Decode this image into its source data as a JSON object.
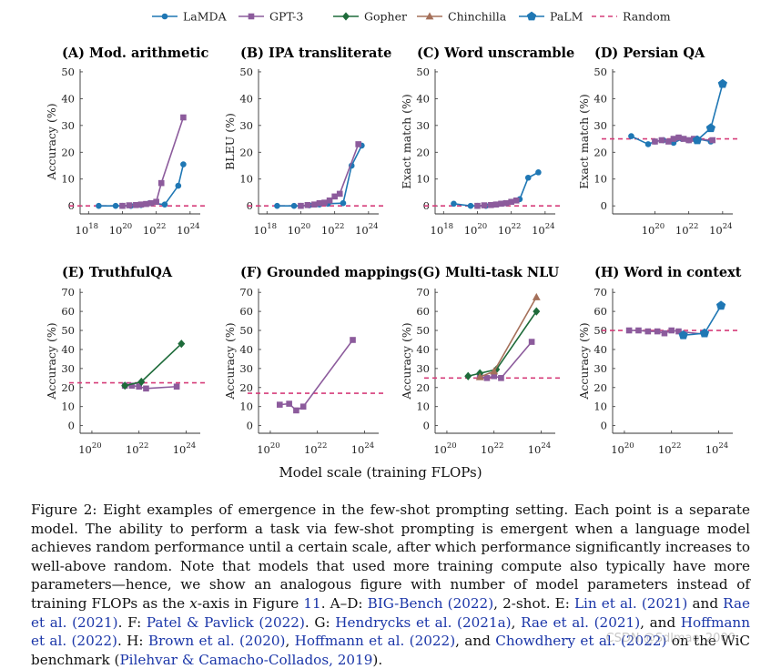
{
  "legend": [
    {
      "key": "LaMDA",
      "label": "LaMDA",
      "color": "#1f77b4",
      "marker": "circle"
    },
    {
      "key": "GPT3",
      "label": "GPT-3",
      "color": "#8c5b9c",
      "marker": "square"
    },
    {
      "key": "Gopher",
      "label": "Gopher",
      "color": "#1e6b3a",
      "marker": "diamond"
    },
    {
      "key": "Chinchilla",
      "label": "Chinchilla",
      "color": "#a5705a",
      "marker": "triangle"
    },
    {
      "key": "PaLM",
      "label": "PaLM",
      "color": "#1f77b4",
      "marker": "pentagon"
    },
    {
      "key": "Random",
      "label": "Random",
      "color": "#d63d7a",
      "marker": "dash"
    }
  ],
  "chart_data": [
    {
      "type": "line",
      "title": "(A) Mod. arithmetic",
      "ylabel": "Accuracy (%)",
      "xlim": [
        17.5,
        24.6
      ],
      "ylim": [
        -3,
        51
      ],
      "yticks": [
        0,
        10,
        20,
        30,
        40,
        50
      ],
      "xticks": [
        18,
        20,
        22,
        24
      ],
      "random": 0,
      "series": [
        {
          "name": "LaMDA",
          "x": [
            18.6,
            19.6,
            20.0,
            20.5,
            21.1,
            21.6,
            22.5,
            23.3,
            23.6
          ],
          "y": [
            0,
            0,
            0,
            0,
            0.3,
            1,
            0.5,
            7.5,
            15.5
          ]
        },
        {
          "name": "GPT-3",
          "x": [
            20.0,
            20.4,
            20.8,
            21.1,
            21.4,
            21.7,
            22.0,
            22.3,
            23.6
          ],
          "y": [
            0,
            0.2,
            0.3,
            0.5,
            0.7,
            1,
            1.5,
            8.5,
            33
          ]
        }
      ]
    },
    {
      "type": "line",
      "title": "(B) IPA transliterate",
      "ylabel": "BLEU (%)",
      "xlim": [
        17.5,
        24.6
      ],
      "ylim": [
        -3,
        51
      ],
      "yticks": [
        0,
        10,
        20,
        30,
        40,
        50
      ],
      "xticks": [
        18,
        20,
        22,
        24
      ],
      "random": 0,
      "series": [
        {
          "name": "LaMDA",
          "x": [
            18.6,
            19.6,
            20.0,
            20.5,
            21.1,
            21.6,
            22.5,
            23.0,
            23.6
          ],
          "y": [
            0,
            0,
            0,
            0.2,
            0.5,
            0.8,
            1,
            15,
            22.5
          ]
        },
        {
          "name": "GPT-3",
          "x": [
            20.0,
            20.4,
            20.8,
            21.1,
            21.4,
            21.7,
            22.0,
            22.3,
            23.4
          ],
          "y": [
            0,
            0.3,
            0.5,
            1,
            1.2,
            2,
            3.5,
            4.5,
            23
          ]
        }
      ]
    },
    {
      "type": "line",
      "title": "(C) Word unscramble",
      "ylabel": "Exact match (%)",
      "xlim": [
        17.5,
        24.6
      ],
      "ylim": [
        -3,
        51
      ],
      "yticks": [
        0,
        10,
        20,
        30,
        40,
        50
      ],
      "xticks": [
        18,
        20,
        22,
        24
      ],
      "random": 0,
      "series": [
        {
          "name": "LaMDA",
          "x": [
            18.6,
            19.6,
            20.0,
            20.5,
            21.1,
            21.6,
            22.0,
            22.5,
            23.0,
            23.6
          ],
          "y": [
            0.8,
            0,
            0,
            0,
            0.5,
            1,
            1.5,
            2.5,
            10.5,
            12.5
          ]
        },
        {
          "name": "GPT-3",
          "x": [
            20.0,
            20.4,
            20.8,
            21.1,
            21.4,
            21.7,
            22.0,
            22.3
          ],
          "y": [
            0,
            0.2,
            0.3,
            0.5,
            0.8,
            1,
            1.5,
            2
          ]
        }
      ]
    },
    {
      "type": "line",
      "title": "(D) Persian QA",
      "ylabel": "Exact match (%)",
      "xlim": [
        17.5,
        24.6
      ],
      "ylim": [
        -3,
        51
      ],
      "yticks": [
        0,
        10,
        20,
        30,
        40,
        50
      ],
      "xticks": [
        20,
        22,
        24
      ],
      "random": 25,
      "series": [
        {
          "name": "LaMDA",
          "x": [
            18.6,
            19.6,
            20.0,
            20.5,
            21.1,
            21.6,
            22.0,
            22.5,
            23.3
          ],
          "y": [
            26,
            23,
            24,
            24.5,
            23.5,
            25,
            24.5,
            25,
            24
          ]
        },
        {
          "name": "GPT-3",
          "x": [
            20.0,
            20.4,
            20.8,
            21.1,
            21.4,
            21.7,
            22.0,
            22.3,
            23.4
          ],
          "y": [
            24,
            24.5,
            24,
            25,
            25.5,
            25,
            24.5,
            25,
            24.5
          ]
        },
        {
          "name": "PaLM",
          "x": [
            22.5,
            23.3,
            24.0
          ],
          "y": [
            24.5,
            29,
            45.5
          ]
        }
      ]
    },
    {
      "type": "line",
      "title": "(E) TruthfulQA",
      "ylabel": "Accuracy (%)",
      "xlim": [
        19.5,
        24.6
      ],
      "ylim": [
        -4,
        72
      ],
      "yticks": [
        0,
        10,
        20,
        30,
        40,
        50,
        60,
        70
      ],
      "xticks": [
        20,
        22,
        24
      ],
      "random": 22.5,
      "series": [
        {
          "name": "GPT-3",
          "x": [
            21.4,
            21.7,
            22.0,
            22.3,
            23.6
          ],
          "y": [
            21,
            21,
            20.5,
            19.5,
            20.5
          ]
        },
        {
          "name": "Gopher",
          "x": [
            21.4,
            22.1,
            23.8
          ],
          "y": [
            21,
            23,
            43
          ]
        }
      ]
    },
    {
      "type": "line",
      "title": "(F) Grounded mappings",
      "ylabel": "Accuracy (%)",
      "xlim": [
        19.5,
        24.6
      ],
      "ylim": [
        -4,
        72
      ],
      "yticks": [
        0,
        10,
        20,
        30,
        40,
        50,
        60,
        70
      ],
      "xticks": [
        20,
        22,
        24
      ],
      "random": 17,
      "series": [
        {
          "name": "GPT-3",
          "x": [
            20.4,
            20.8,
            21.1,
            21.4,
            23.5
          ],
          "y": [
            11,
            11.5,
            8,
            10,
            45
          ]
        }
      ]
    },
    {
      "type": "line",
      "title": "(G) Multi-task NLU",
      "ylabel": "Accuracy (%)",
      "xlim": [
        19.5,
        24.6
      ],
      "ylim": [
        -4,
        72
      ],
      "yticks": [
        0,
        10,
        20,
        30,
        40,
        50,
        60,
        70
      ],
      "xticks": [
        20,
        22,
        24
      ],
      "random": 25,
      "series": [
        {
          "name": "GPT-3",
          "x": [
            21.4,
            21.7,
            22.0,
            22.3,
            23.6
          ],
          "y": [
            25.5,
            25,
            26,
            25,
            44
          ]
        },
        {
          "name": "Gopher",
          "x": [
            20.9,
            21.4,
            22.1,
            23.8
          ],
          "y": [
            26,
            27.5,
            29.5,
            60
          ]
        },
        {
          "name": "Chinchilla",
          "x": [
            21.4,
            22.0,
            23.8
          ],
          "y": [
            25.5,
            28.5,
            67.5
          ]
        }
      ]
    },
    {
      "type": "line",
      "title": "(H) Word in context",
      "ylabel": "Accuracy (%)",
      "xlim": [
        19.5,
        24.6
      ],
      "ylim": [
        -4,
        72
      ],
      "yticks": [
        0,
        10,
        20,
        30,
        40,
        50,
        60,
        70
      ],
      "xticks": [
        20,
        22,
        24
      ],
      "random": 50,
      "series": [
        {
          "name": "GPT-3",
          "x": [
            20.2,
            20.6,
            21.0,
            21.4,
            21.7,
            22.0,
            22.3,
            23.4
          ],
          "y": [
            50,
            50,
            49.5,
            49.5,
            48.5,
            50,
            49.5,
            48
          ]
        },
        {
          "name": "PaLM",
          "x": [
            22.5,
            23.4,
            24.1
          ],
          "y": [
            47.5,
            48.5,
            63
          ]
        }
      ]
    }
  ],
  "xlabel": "Model scale (training FLOPs)",
  "caption": [
    {
      "t": "Figure 2: Eight examples of emergence in the few-shot prompting setting. Each point is a separate model. The ability to perform a task via few-shot prompting is emergent when a language model achieves random performance until a certain scale, after which performance significantly increases to well-above random. Note that models that used more training compute also typically have more parameters—hence, we show an analogous figure with number of model parameters instead of training FLOPs as the "
    },
    {
      "t": "x",
      "i": true
    },
    {
      "t": "-axis in Figure "
    },
    {
      "t": "11",
      "c": true
    },
    {
      "t": ". A–D: "
    },
    {
      "t": "BIG-Bench (2022)",
      "c": true
    },
    {
      "t": ", 2-shot. E: "
    },
    {
      "t": "Lin et al. (2021)",
      "c": true
    },
    {
      "t": " and "
    },
    {
      "t": "Rae et al. (2021)",
      "c": true
    },
    {
      "t": ". F: "
    },
    {
      "t": "Patel & Pavlick (2022)",
      "c": true
    },
    {
      "t": ". G: "
    },
    {
      "t": "Hendrycks et al. (2021a)",
      "c": true
    },
    {
      "t": ", "
    },
    {
      "t": "Rae et al. (2021)",
      "c": true
    },
    {
      "t": ", and "
    },
    {
      "t": "Hoffmann et al. (2022)",
      "c": true
    },
    {
      "t": ". H: "
    },
    {
      "t": "Brown et al. (2020)",
      "c": true
    },
    {
      "t": ", "
    },
    {
      "t": "Hoffmann et al. (2022)",
      "c": true
    },
    {
      "t": ", and "
    },
    {
      "t": "Chowdhery et al. (2022)",
      "c": true
    },
    {
      "t": " on the WiC benchmark ("
    },
    {
      "t": "Pilehvar & Camacho-Collados, 2019",
      "c": true
    },
    {
      "t": ")."
    }
  ],
  "watermark": "CSDN @Sdlmao_2000"
}
